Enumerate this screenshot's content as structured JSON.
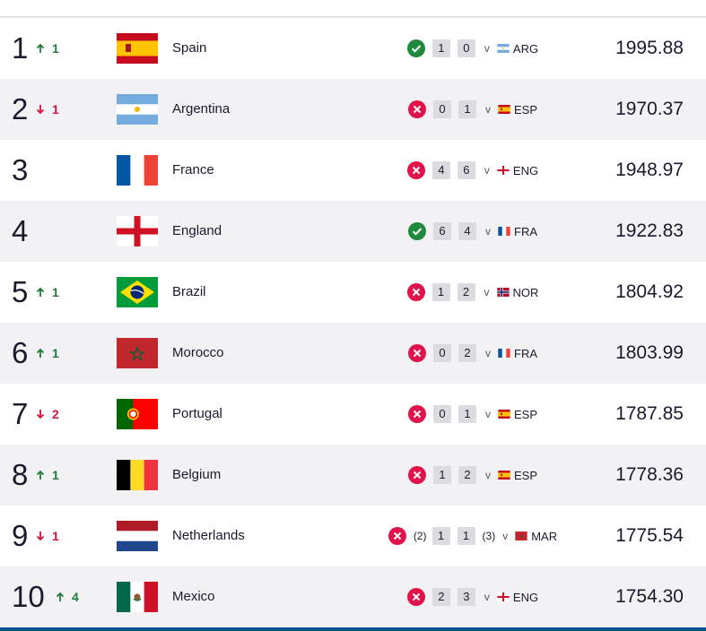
{
  "table": {
    "rows": [
      {
        "rank": 1,
        "change": {
          "value": 1,
          "label": "1"
        },
        "country": "Spain",
        "won": true,
        "score": [
          1,
          0
        ],
        "vs": "v",
        "opponent": "ARG",
        "points": "1995.88"
      },
      {
        "rank": 2,
        "change": {
          "value": -1,
          "label": "1"
        },
        "country": "Argentina",
        "won": false,
        "score": [
          0,
          1
        ],
        "vs": "v",
        "opponent": "ESP",
        "points": "1970.37"
      },
      {
        "rank": 3,
        "country": "France",
        "won": false,
        "score": [
          4,
          6
        ],
        "vs": "v",
        "opponent": "ENG",
        "points": "1948.97"
      },
      {
        "rank": 4,
        "country": "England",
        "won": true,
        "score": [
          6,
          4
        ],
        "vs": "v",
        "opponent": "FRA",
        "points": "1922.83"
      },
      {
        "rank": 5,
        "change": {
          "value": 1,
          "label": "1"
        },
        "country": "Brazil",
        "won": false,
        "score": [
          1,
          2
        ],
        "vs": "v",
        "opponent": "NOR",
        "points": "1804.92"
      },
      {
        "rank": 6,
        "change": {
          "value": 1,
          "label": "1"
        },
        "country": "Morocco",
        "won": false,
        "score": [
          0,
          2
        ],
        "vs": "v",
        "opponent": "FRA",
        "points": "1803.99"
      },
      {
        "rank": 7,
        "change": {
          "value": -2,
          "label": "2"
        },
        "country": "Portugal",
        "won": false,
        "score": [
          0,
          1
        ],
        "vs": "v",
        "opponent": "ESP",
        "points": "1787.85"
      },
      {
        "rank": 8,
        "change": {
          "value": 1,
          "label": "1"
        },
        "country": "Belgium",
        "won": false,
        "score": [
          1,
          2
        ],
        "vs": "v",
        "opponent": "ESP",
        "points": "1778.36"
      },
      {
        "rank": 9,
        "change": {
          "value": -1,
          "label": "1"
        },
        "country": "Netherlands",
        "won": false,
        "score": [
          1,
          1
        ],
        "penalties": [
          "(2)",
          "(3)"
        ],
        "vs": "v",
        "opponent": "MAR",
        "points": "1775.54"
      },
      {
        "rank": 10,
        "change": {
          "value": 4,
          "label": "4"
        },
        "country": "Mexico",
        "won": false,
        "score": [
          2,
          3
        ],
        "vs": "v",
        "opponent": "ENG",
        "points": "1754.30"
      }
    ]
  }
}
